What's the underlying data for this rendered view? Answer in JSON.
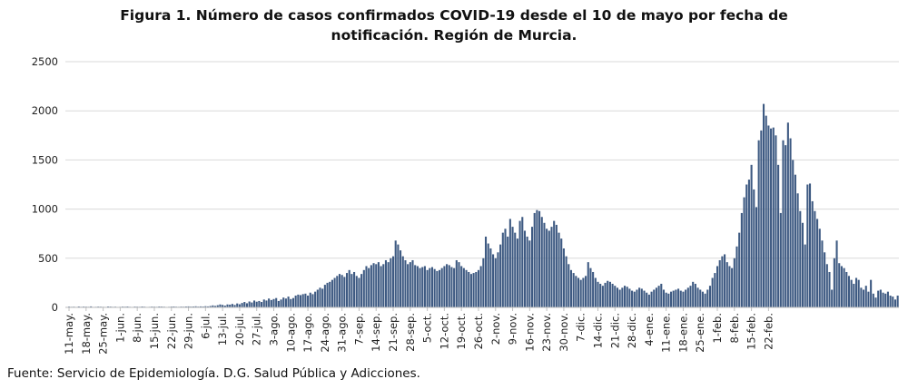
{
  "chart_data": {
    "type": "bar",
    "title_line1": "Figura 1. Número de casos confirmados COVID-19 desde el 10 de mayo por fecha de",
    "title_line2": "notificación. Región de Murcia.",
    "xlabel": "",
    "ylabel": "",
    "ylim": [
      0,
      2500
    ],
    "yticks": [
      0,
      500,
      1000,
      1500,
      2000,
      2500
    ],
    "grid": true,
    "bar_color": "#3e5a82",
    "start_date": "10 may",
    "end_date": "22 feb",
    "x_tick_labels": [
      "11-may.",
      "18-may.",
      "25-may.",
      "1-jun.",
      "8-jun.",
      "15-jun.",
      "22-jun.",
      "29-jun.",
      "6-jul.",
      "13-jul.",
      "20-jul.",
      "27-jul.",
      "3-ago.",
      "10-ago.",
      "17-ago.",
      "24-ago.",
      "31-ago.",
      "7-sep.",
      "14-sep.",
      "21-sep.",
      "28-sep.",
      "5-oct.",
      "12-oct.",
      "19-oct.",
      "26-oct.",
      "2-nov.",
      "9-nov.",
      "16-nov.",
      "23-nov.",
      "30-nov.",
      "7-dic.",
      "14-dic.",
      "21-dic.",
      "28-dic.",
      "4-ene.",
      "11-ene.",
      "18-ene.",
      "25-ene.",
      "1-feb.",
      "8-feb.",
      "15-feb.",
      "22-feb."
    ],
    "values": [
      5,
      8,
      6,
      7,
      5,
      9,
      6,
      8,
      7,
      6,
      10,
      5,
      6,
      8,
      7,
      6,
      5,
      9,
      8,
      6,
      7,
      5,
      6,
      8,
      7,
      9,
      6,
      5,
      8,
      7,
      6,
      9,
      7,
      5,
      6,
      8,
      7,
      6,
      9,
      8,
      7,
      5,
      6,
      8,
      9,
      7,
      6,
      8,
      7,
      9,
      10,
      8,
      9,
      11,
      8,
      10,
      9,
      12,
      10,
      14,
      20,
      15,
      22,
      30,
      25,
      18,
      30,
      28,
      35,
      25,
      40,
      32,
      45,
      55,
      42,
      60,
      50,
      70,
      58,
      65,
      55,
      80,
      70,
      90,
      75,
      85,
      95,
      65,
      80,
      100,
      90,
      110,
      85,
      95,
      120,
      130,
      125,
      135,
      140,
      120,
      150,
      135,
      160,
      180,
      200,
      190,
      230,
      250,
      260,
      280,
      300,
      320,
      340,
      330,
      310,
      350,
      380,
      340,
      360,
      320,
      300,
      340,
      380,
      420,
      400,
      430,
      450,
      440,
      460,
      420,
      440,
      480,
      460,
      500,
      520,
      680,
      640,
      580,
      520,
      480,
      440,
      460,
      480,
      430,
      420,
      400,
      410,
      420,
      380,
      400,
      410,
      390,
      370,
      380,
      400,
      420,
      440,
      430,
      410,
      400,
      480,
      460,
      420,
      400,
      380,
      360,
      340,
      350,
      360,
      380,
      420,
      500,
      720,
      650,
      600,
      540,
      500,
      560,
      640,
      760,
      800,
      720,
      900,
      820,
      760,
      700,
      880,
      920,
      780,
      720,
      680,
      820,
      960,
      990,
      980,
      920,
      860,
      800,
      780,
      820,
      880,
      840,
      760,
      700,
      600,
      520,
      440,
      380,
      350,
      320,
      300,
      280,
      300,
      320,
      460,
      400,
      360,
      300,
      260,
      240,
      220,
      250,
      270,
      260,
      240,
      220,
      200,
      180,
      200,
      220,
      210,
      190,
      170,
      160,
      180,
      200,
      190,
      170,
      150,
      130,
      160,
      180,
      200,
      220,
      240,
      180,
      150,
      140,
      160,
      170,
      180,
      190,
      170,
      160,
      180,
      200,
      220,
      260,
      240,
      200,
      180,
      160,
      140,
      180,
      220,
      300,
      350,
      420,
      480,
      520,
      540,
      460,
      420,
      400,
      500,
      620,
      760,
      960,
      1120,
      1250,
      1300,
      1450,
      1200,
      1020,
      1700,
      1800,
      2070,
      1950,
      1850,
      1820,
      1830,
      1750,
      1450,
      960,
      1700,
      1650,
      1880,
      1720,
      1500,
      1350,
      1160,
      980,
      860,
      640,
      1250,
      1260,
      1080,
      980,
      900,
      800,
      680,
      560,
      440,
      360,
      180,
      500,
      680,
      450,
      420,
      400,
      360,
      320,
      280,
      240,
      300,
      280,
      200,
      180,
      220,
      160,
      280,
      140,
      100,
      170,
      180,
      150,
      140,
      160,
      120,
      110,
      80,
      120
    ]
  },
  "source_text": "Fuente: Servicio de Epidemiología. D.G. Salud Pública y Adicciones."
}
